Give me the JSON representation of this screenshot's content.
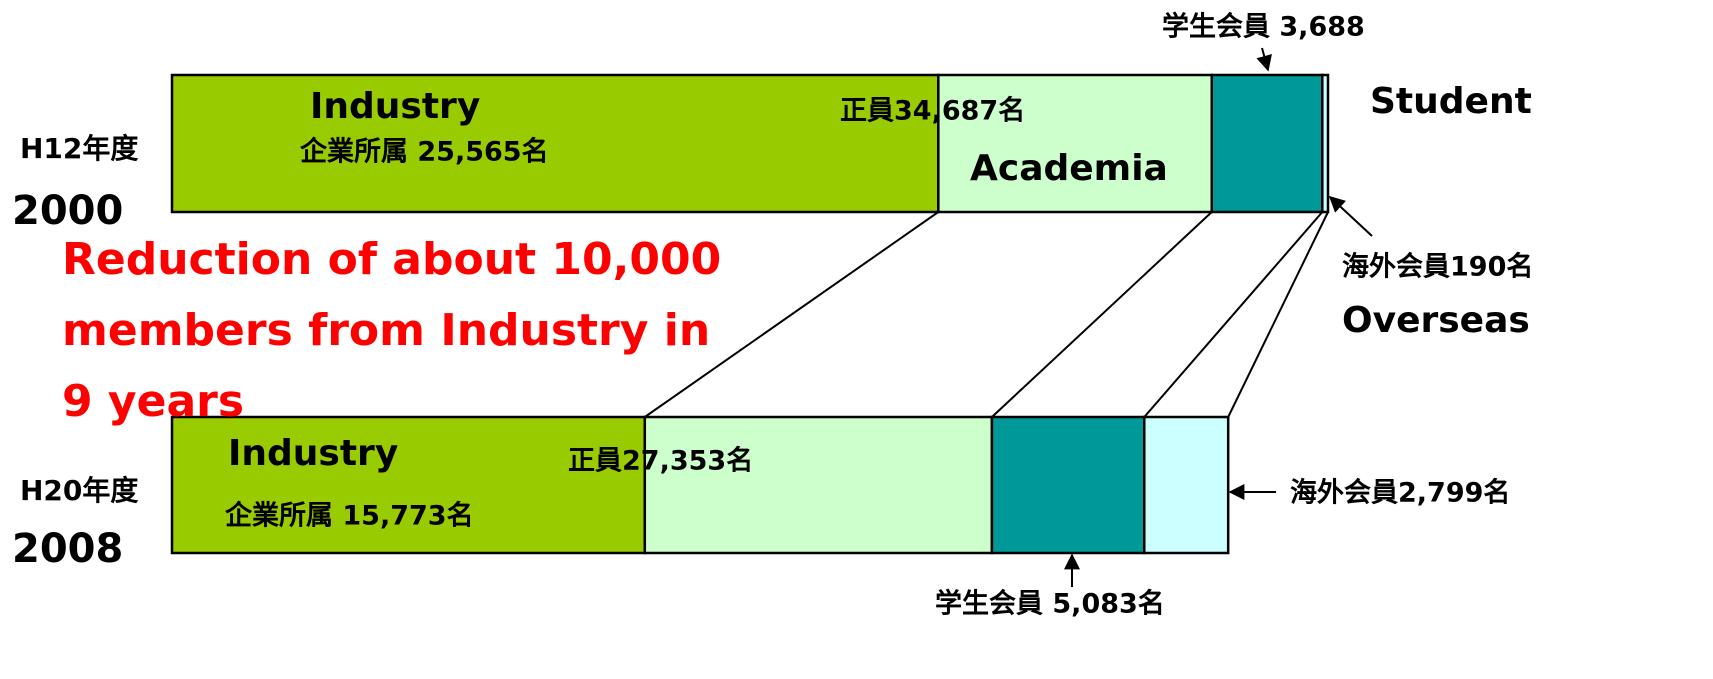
{
  "chart_data": {
    "type": "bar",
    "orientation": "horizontal",
    "stacked": true,
    "categories": [
      "2000",
      "2008"
    ],
    "category_labels": [
      "H12年度",
      "H20年度"
    ],
    "xlim": [
      0,
      38565
    ],
    "series": [
      {
        "name": "Industry",
        "color": "#99cc00",
        "values": [
          25565,
          15773
        ],
        "value_labels": [
          "企業所属 25,565名",
          "企業所属 15,773名"
        ]
      },
      {
        "name": "Academia",
        "color": "#ccffcc",
        "values": [
          9122,
          11580
        ]
      },
      {
        "name": "Student",
        "color": "#009999",
        "values": [
          3688,
          5083
        ],
        "value_labels": [
          "学生会員 3,688",
          "学生会員 5,083名"
        ]
      },
      {
        "name": "Overseas",
        "color": "#ccffff",
        "values": [
          190,
          2799
        ],
        "value_labels": [
          "海外会員190名",
          "海外会員2,799名"
        ]
      }
    ],
    "annotations": [
      "正員34,687名",
      "正員27,353名"
    ],
    "note": [
      "Reduction of about 10,000",
      "members from Industry  in",
      "9 years"
    ]
  }
}
